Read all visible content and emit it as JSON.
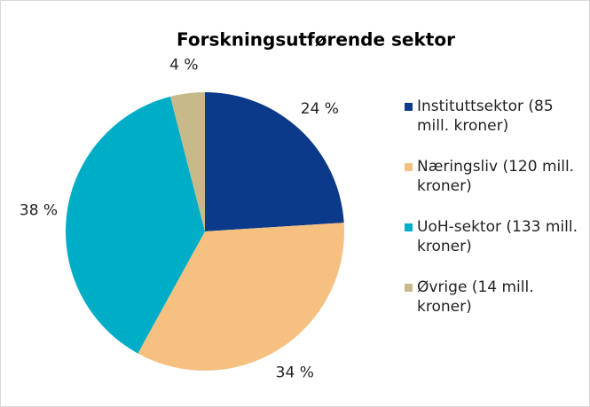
{
  "chart_data": {
    "type": "pie",
    "title": "Forskningsutførende sektor",
    "categories": [
      "Instituttsektor (85 mill. kroner)",
      "Næringsliv (120 mill. kroner)",
      "UoH-sektor (133 mill. kroner)",
      "Øvrige (14 mill. kroner)"
    ],
    "values": [
      24,
      34,
      38,
      4
    ],
    "value_labels": [
      "24 %",
      "34 %",
      "38 %",
      "4 %"
    ],
    "colors": [
      "#0b3a8a",
      "#f5c080",
      "#00adc6",
      "#c8b98a"
    ],
    "legend": "right"
  }
}
